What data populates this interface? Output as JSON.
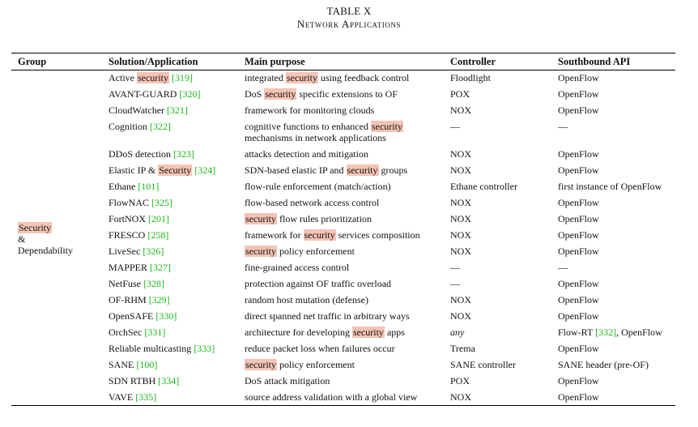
{
  "caption": {
    "label": "TABLE X",
    "title": "Network Applications"
  },
  "headers": [
    "Group",
    "Solution/Application",
    "Main purpose",
    "Controller",
    "Southbound API"
  ],
  "group": {
    "line1": "Security",
    "line2": "&",
    "line3": "Dependability"
  },
  "rows": [
    {
      "sol_pre": "Active ",
      "sol_hl": "security",
      "sol_post": " ",
      "sol_ref": "[319]",
      "mp_pre": "integrated ",
      "mp_hl": "security",
      "mp_post": " using feedback control",
      "controller": "Floodlight",
      "sapi_pre": "OpenFlow",
      "sapi_ref": "",
      "sapi_post": ""
    },
    {
      "sol_pre": "AVANT-GUARD ",
      "sol_hl": "",
      "sol_post": "",
      "sol_ref": "[320]",
      "mp_pre": "DoS ",
      "mp_hl": "security",
      "mp_post": " specific extensions to OF",
      "controller": "POX",
      "sapi_pre": "OpenFlow",
      "sapi_ref": "",
      "sapi_post": ""
    },
    {
      "sol_pre": "CloudWatcher ",
      "sol_hl": "",
      "sol_post": "",
      "sol_ref": "[321]",
      "mp_pre": "framework for monitoring clouds",
      "mp_hl": "",
      "mp_post": "",
      "controller": "NOX",
      "sapi_pre": "OpenFlow",
      "sapi_ref": "",
      "sapi_post": ""
    },
    {
      "sol_pre": "Cognition ",
      "sol_hl": "",
      "sol_post": "",
      "sol_ref": "[322]",
      "mp_pre": "cognitive  functions  to  enhanced ",
      "mp_hl": "security",
      "mp_post": " mechanisms in network applications",
      "controller": "—",
      "sapi_pre": "—",
      "sapi_ref": "",
      "sapi_post": "",
      "tall": true
    },
    {
      "sol_pre": "DDoS detection ",
      "sol_hl": "",
      "sol_post": "",
      "sol_ref": "[323]",
      "mp_pre": "attacks detection and mitigation",
      "mp_hl": "",
      "mp_post": "",
      "controller": "NOX",
      "sapi_pre": "OpenFlow",
      "sapi_ref": "",
      "sapi_post": ""
    },
    {
      "sol_pre": "Elastic IP & ",
      "sol_hl": "Security",
      "sol_post": " ",
      "sol_ref": "[324]",
      "mp_pre": "SDN-based elastic IP and ",
      "mp_hl": "security",
      "mp_post": " groups",
      "controller": "NOX",
      "sapi_pre": "OpenFlow",
      "sapi_ref": "",
      "sapi_post": ""
    },
    {
      "sol_pre": "Ethane ",
      "sol_hl": "",
      "sol_post": "",
      "sol_ref": "[101]",
      "mp_pre": "flow-rule enforcement (match/action)",
      "mp_hl": "",
      "mp_post": "",
      "controller": "Ethane controller",
      "sapi_pre": "first instance of OpenFlow",
      "sapi_ref": "",
      "sapi_post": ""
    },
    {
      "sol_pre": "FlowNAC ",
      "sol_hl": "",
      "sol_post": "",
      "sol_ref": "[325]",
      "mp_pre": "flow-based network access control",
      "mp_hl": "",
      "mp_post": "",
      "controller": "NOX",
      "sapi_pre": "OpenFlow",
      "sapi_ref": "",
      "sapi_post": ""
    },
    {
      "sol_pre": "FortNOX  ",
      "sol_hl": "",
      "sol_post": "",
      "sol_ref": "[201]",
      "mp_pre": "",
      "mp_hl": "security",
      "mp_post": " flow rules prioritization",
      "controller": "NOX",
      "sapi_pre": "OpenFlow",
      "sapi_ref": "",
      "sapi_post": ""
    },
    {
      "sol_pre": "FRESCO  ",
      "sol_hl": "",
      "sol_post": "",
      "sol_ref": "[258]",
      "mp_pre": "framework for ",
      "mp_hl": "security",
      "mp_post": " services composition",
      "controller": "NOX",
      "sapi_pre": "OpenFlow",
      "sapi_ref": "",
      "sapi_post": ""
    },
    {
      "sol_pre": "LiveSec ",
      "sol_hl": "",
      "sol_post": "",
      "sol_ref": "[326]",
      "mp_pre": "",
      "mp_hl": "security",
      "mp_post": " policy enforcement",
      "controller": "NOX",
      "sapi_pre": "OpenFlow",
      "sapi_ref": "",
      "sapi_post": ""
    },
    {
      "sol_pre": "MAPPER ",
      "sol_hl": "",
      "sol_post": "",
      "sol_ref": "[327]",
      "mp_pre": "fine-grained access control",
      "mp_hl": "",
      "mp_post": "",
      "controller": "—",
      "sapi_pre": "—",
      "sapi_ref": "",
      "sapi_post": ""
    },
    {
      "sol_pre": "NetFuse ",
      "sol_hl": "",
      "sol_post": "",
      "sol_ref": "[328]",
      "mp_pre": "protection against OF traffic overload",
      "mp_hl": "",
      "mp_post": "",
      "controller": "—",
      "sapi_pre": "OpenFlow",
      "sapi_ref": "",
      "sapi_post": ""
    },
    {
      "sol_pre": "OF-RHM ",
      "sol_hl": "",
      "sol_post": "",
      "sol_ref": "[329]",
      "mp_pre": "random host mutation (defense)",
      "mp_hl": "",
      "mp_post": "",
      "controller": "NOX",
      "sapi_pre": "OpenFlow",
      "sapi_ref": "",
      "sapi_post": ""
    },
    {
      "sol_pre": "OpenSAFE ",
      "sol_hl": "",
      "sol_post": "",
      "sol_ref": "[330]",
      "mp_pre": "direct spanned net traffic in arbitrary ways",
      "mp_hl": "",
      "mp_post": "",
      "controller": "NOX",
      "sapi_pre": "OpenFlow",
      "sapi_ref": "",
      "sapi_post": ""
    },
    {
      "sol_pre": "OrchSec ",
      "sol_hl": "",
      "sol_post": "",
      "sol_ref": "[331]",
      "mp_pre": "architecture for developing ",
      "mp_hl": "security",
      "mp_post": " apps",
      "controller": "any",
      "controller_italic": true,
      "sapi_pre": "Flow-RT ",
      "sapi_ref": "[332]",
      "sapi_post": ", OpenFlow"
    },
    {
      "sol_pre": "Reliable multicasting ",
      "sol_hl": "",
      "sol_post": "",
      "sol_ref": "[333]",
      "mp_pre": "reduce packet loss when failures occur",
      "mp_hl": "",
      "mp_post": "",
      "controller": "Trema",
      "sapi_pre": "OpenFlow",
      "sapi_ref": "",
      "sapi_post": ""
    },
    {
      "sol_pre": "SANE ",
      "sol_hl": "",
      "sol_post": "",
      "sol_ref": "[100]",
      "mp_pre": "",
      "mp_hl": "security",
      "mp_post": " policy enforcement",
      "controller": "SANE controller",
      "sapi_pre": "SANE header (pre-OF)",
      "sapi_ref": "",
      "sapi_post": ""
    },
    {
      "sol_pre": "SDN RTBH ",
      "sol_hl": "",
      "sol_post": "",
      "sol_ref": "[334]",
      "mp_pre": "DoS attack mitigation",
      "mp_hl": "",
      "mp_post": "",
      "controller": "POX",
      "sapi_pre": "OpenFlow",
      "sapi_ref": "",
      "sapi_post": ""
    },
    {
      "sol_pre": "VAVE ",
      "sol_hl": "",
      "sol_post": "",
      "sol_ref": "[335]",
      "mp_pre": "source address validation with a global view",
      "mp_hl": "",
      "mp_post": "",
      "controller": "NOX",
      "sapi_pre": "OpenFlow",
      "sapi_ref": "",
      "sapi_post": ""
    }
  ]
}
